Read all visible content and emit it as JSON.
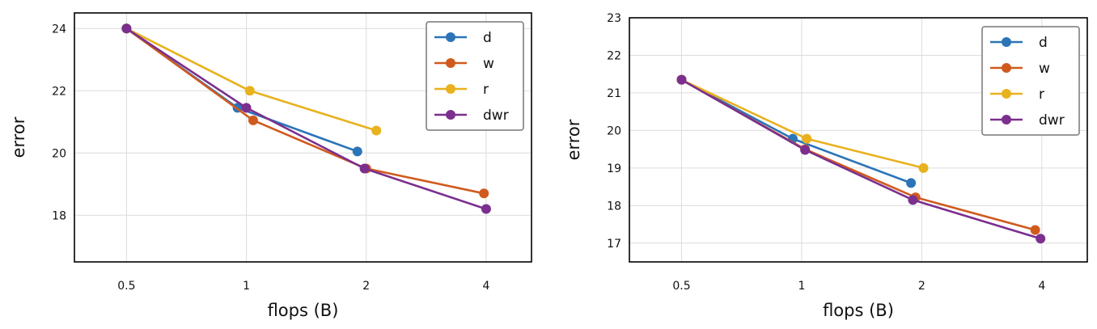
{
  "chart_data": [
    {
      "type": "line",
      "xscale": "log2",
      "xlabel": "flops (B)",
      "ylabel": "error",
      "xlim": [
        0.37,
        5.2
      ],
      "ylim": [
        16.5,
        24.5
      ],
      "xticks": [
        0.5,
        1,
        2,
        4
      ],
      "xtick_labels": [
        "0.5",
        "1",
        "2",
        "4"
      ],
      "yticks": [
        18,
        20,
        22,
        24
      ],
      "ytick_labels": [
        "18",
        "20",
        "22",
        "24"
      ],
      "grid": true,
      "legend_position": "top-right",
      "series": [
        {
          "name": "d",
          "color": "#2b74b8",
          "x": [
            0.5,
            0.95,
            1.9
          ],
          "y": [
            24.0,
            21.45,
            20.05
          ]
        },
        {
          "name": "w",
          "color": "#d05a1e",
          "x": [
            0.5,
            1.04,
            2.0,
            3.95
          ],
          "y": [
            24.0,
            21.05,
            19.5,
            18.7
          ]
        },
        {
          "name": "r",
          "color": "#e8b21e",
          "x": [
            0.5,
            1.02,
            2.12
          ],
          "y": [
            24.0,
            22.0,
            20.72
          ]
        },
        {
          "name": "dwr",
          "color": "#7b2f8e",
          "x": [
            0.5,
            1.0,
            1.98,
            4.0
          ],
          "y": [
            24.0,
            21.45,
            19.5,
            18.2
          ]
        }
      ]
    },
    {
      "type": "line",
      "xscale": "log2",
      "xlabel": "flops (B)",
      "ylabel": "error",
      "xlim": [
        0.37,
        5.2
      ],
      "ylim": [
        16.5,
        23.0
      ],
      "xticks": [
        0.5,
        1,
        2,
        4
      ],
      "xtick_labels": [
        "0.5",
        "1",
        "2",
        "4"
      ],
      "yticks": [
        17,
        18,
        19,
        20,
        21,
        22,
        23
      ],
      "ytick_labels": [
        "17",
        "18",
        "19",
        "20",
        "21",
        "22",
        "23"
      ],
      "grid": true,
      "legend_position": "top-right",
      "series": [
        {
          "name": "d",
          "color": "#2b74b8",
          "x": [
            0.5,
            0.95,
            1.88
          ],
          "y": [
            21.35,
            19.78,
            18.6
          ]
        },
        {
          "name": "w",
          "color": "#d05a1e",
          "x": [
            0.5,
            1.02,
            1.93,
            3.85
          ],
          "y": [
            21.35,
            19.5,
            18.22,
            17.35
          ]
        },
        {
          "name": "r",
          "color": "#e8b21e",
          "x": [
            0.5,
            1.03,
            2.02
          ],
          "y": [
            21.35,
            19.78,
            19.0
          ]
        },
        {
          "name": "dwr",
          "color": "#7b2f8e",
          "x": [
            0.5,
            1.02,
            1.9,
            3.97
          ],
          "y": [
            21.35,
            19.48,
            18.15,
            17.12
          ]
        }
      ]
    }
  ]
}
